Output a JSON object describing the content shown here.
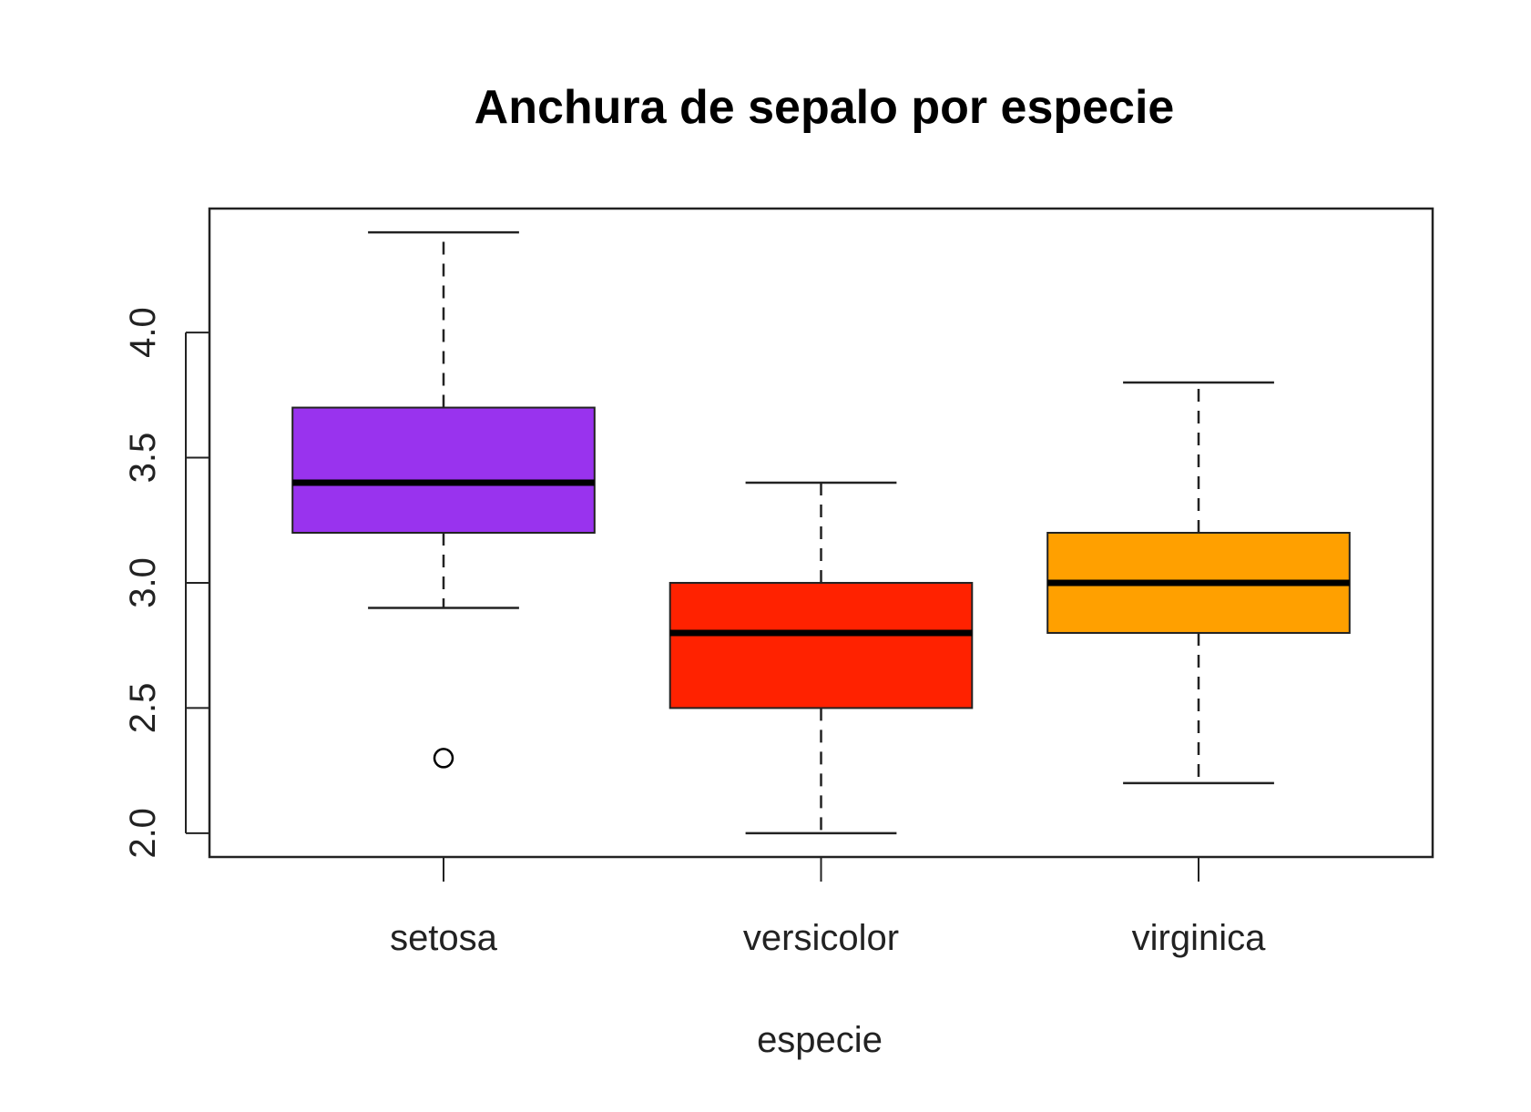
{
  "chart_data": {
    "type": "boxplot",
    "title": "Anchura de sepalo por especie",
    "xlabel": "especie",
    "ylabel": "",
    "ylim": [
      1.905,
      4.495
    ],
    "y_ticks": [
      2.0,
      2.5,
      3.0,
      3.5,
      4.0
    ],
    "y_tick_labels": [
      "2.0",
      "2.5",
      "3.0",
      "3.5",
      "4.0"
    ],
    "categories": [
      "setosa",
      "versicolor",
      "virginica"
    ],
    "series": [
      {
        "category": "setosa",
        "whisker_low": 2.9,
        "q1": 3.2,
        "median": 3.4,
        "q3": 3.7,
        "whisker_high": 4.4,
        "outliers": [
          2.3
        ],
        "color": "#9933ee"
      },
      {
        "category": "versicolor",
        "whisker_low": 2.0,
        "q1": 2.5,
        "median": 2.8,
        "q3": 3.0,
        "whisker_high": 3.4,
        "outliers": [],
        "color": "#ff2200"
      },
      {
        "category": "virginica",
        "whisker_low": 2.2,
        "q1": 2.8,
        "median": 3.0,
        "q3": 3.2,
        "whisker_high": 3.8,
        "outliers": [],
        "color": "#ffa000"
      }
    ],
    "grid": false,
    "legend": "none"
  }
}
